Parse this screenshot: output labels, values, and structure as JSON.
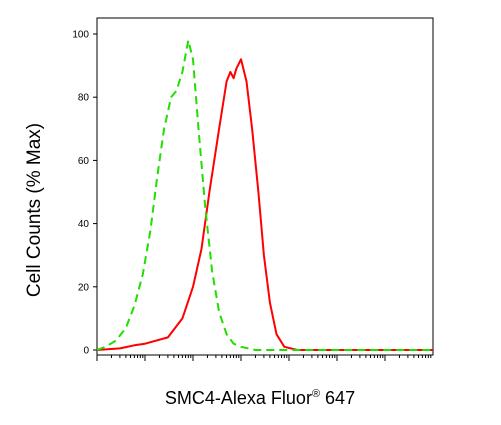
{
  "chart_data": {
    "type": "line",
    "ylabel": "Cell Counts (% Max)",
    "xlabel_main": "SMC4-Alexa Fluor",
    "xlabel_sup": "®",
    "xlabel_tail": " 647",
    "x_scale": "log",
    "xlim": [
      0.1,
      1000000
    ],
    "ylim": [
      0,
      100
    ],
    "y_ticks": [
      0,
      20,
      40,
      60,
      80,
      100
    ],
    "x_tick_labels_shown": false,
    "grid": false,
    "legend": "none",
    "series": [
      {
        "color": "#ff0000",
        "style": "solid",
        "points": [
          [
            0.1,
            0
          ],
          [
            0.3,
            0.5
          ],
          [
            0.6,
            1.5
          ],
          [
            1,
            2
          ],
          [
            3,
            4
          ],
          [
            6,
            10
          ],
          [
            10,
            20
          ],
          [
            15,
            32
          ],
          [
            22,
            50
          ],
          [
            35,
            70
          ],
          [
            50,
            85
          ],
          [
            60,
            88
          ],
          [
            70,
            86
          ],
          [
            80,
            89
          ],
          [
            100,
            92
          ],
          [
            130,
            85
          ],
          [
            170,
            70
          ],
          [
            230,
            50
          ],
          [
            300,
            30
          ],
          [
            400,
            15
          ],
          [
            550,
            5
          ],
          [
            800,
            1
          ],
          [
            1500,
            0
          ],
          [
            10000,
            0
          ],
          [
            1000000,
            0
          ]
        ]
      },
      {
        "color": "#22dd00",
        "style": "dashed",
        "points": [
          [
            0.1,
            0
          ],
          [
            0.15,
            1
          ],
          [
            0.25,
            3
          ],
          [
            0.4,
            7
          ],
          [
            0.6,
            14
          ],
          [
            0.9,
            24
          ],
          [
            1.3,
            38
          ],
          [
            1.8,
            55
          ],
          [
            2.5,
            70
          ],
          [
            3.5,
            80
          ],
          [
            4.5,
            82
          ],
          [
            6,
            88
          ],
          [
            8,
            98
          ],
          [
            10,
            92
          ],
          [
            13,
            70
          ],
          [
            18,
            45
          ],
          [
            25,
            25
          ],
          [
            35,
            12
          ],
          [
            50,
            5
          ],
          [
            70,
            2
          ],
          [
            100,
            1
          ],
          [
            200,
            0
          ],
          [
            1000000,
            0
          ]
        ]
      }
    ]
  }
}
